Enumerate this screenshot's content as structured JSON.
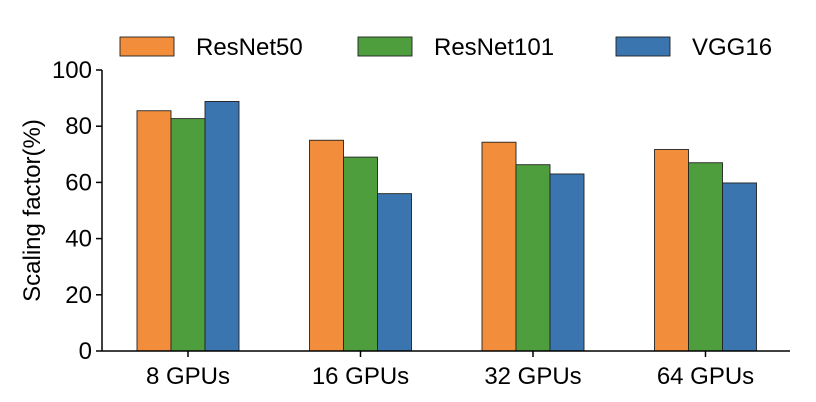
{
  "chart_data": {
    "type": "bar",
    "categories": [
      "8 GPUs",
      "16 GPUs",
      "32 GPUs",
      "64 GPUs"
    ],
    "series": [
      {
        "name": "ResNet50",
        "color": "#F28E3B",
        "values": [
          85.5,
          75,
          74.3,
          71.7
        ]
      },
      {
        "name": "ResNet101",
        "color": "#4F9E3E",
        "values": [
          82.7,
          69,
          66.3,
          67
        ]
      },
      {
        "name": "VGG16",
        "color": "#3B75AF",
        "values": [
          88.8,
          56,
          63,
          59.8
        ]
      }
    ],
    "title": "",
    "xlabel": "",
    "ylabel": "Scaling factor(%)",
    "ylim": [
      0,
      100
    ],
    "yticks": [
      "0",
      "20",
      "40",
      "60",
      "80",
      "100"
    ],
    "grid": false,
    "legend_position": "top"
  }
}
